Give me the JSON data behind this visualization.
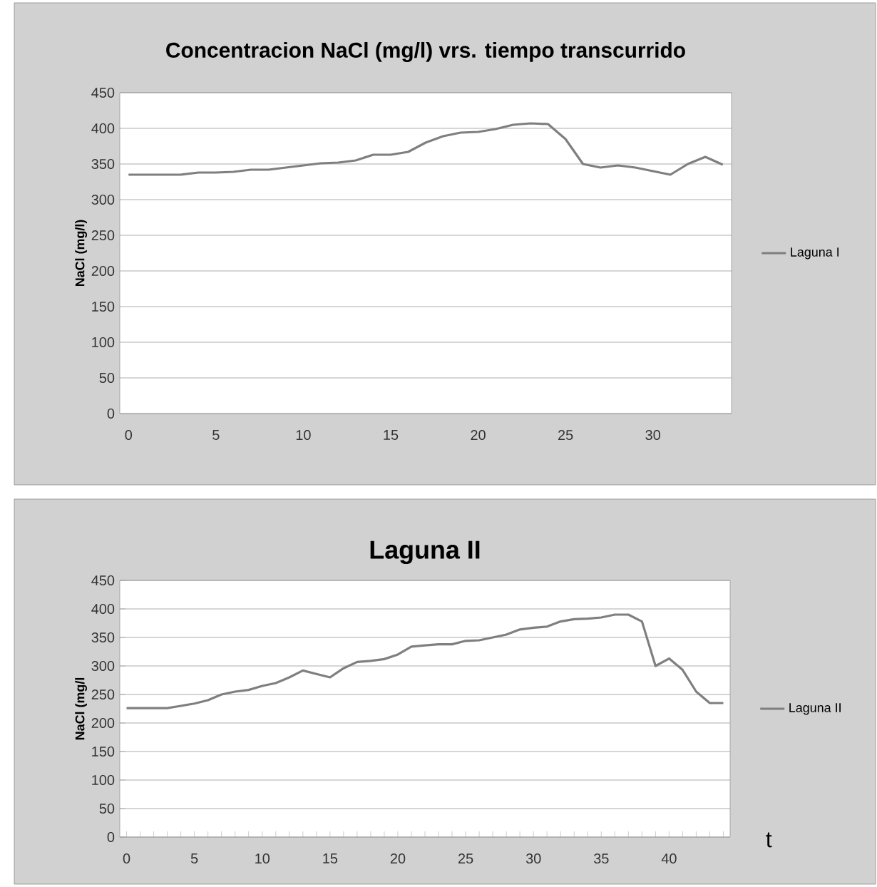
{
  "chart_data": [
    {
      "type": "line",
      "title": "Concentracion  NaCl (mg/l) vrs. tiempo transcurrido",
      "ylabel": "NaCl (mg/l)",
      "x": [
        0,
        1,
        2,
        3,
        4,
        5,
        6,
        7,
        8,
        9,
        10,
        11,
        12,
        13,
        14,
        15,
        16,
        17,
        18,
        19,
        20,
        21,
        22,
        23,
        24,
        25,
        26,
        27,
        28,
        29,
        30,
        31,
        32,
        33,
        34
      ],
      "series": [
        {
          "name": "Laguna I",
          "color": "#7f7f7f",
          "values": [
            335,
            335,
            335,
            335,
            338,
            338,
            339,
            342,
            342,
            345,
            348,
            351,
            352,
            355,
            363,
            363,
            367,
            380,
            389,
            394,
            395,
            399,
            405,
            407,
            406,
            385,
            350,
            345,
            348,
            345,
            340,
            335,
            350,
            360,
            349
          ]
        }
      ],
      "xlim": [
        -0.5,
        34.5
      ],
      "xticks": [
        0,
        5,
        10,
        15,
        20,
        25,
        30
      ],
      "ylim": [
        0,
        450
      ],
      "yticks": [
        0,
        50,
        100,
        150,
        200,
        250,
        300,
        350,
        400,
        450
      ],
      "grid": "y",
      "legend": "right",
      "marker": "none"
    },
    {
      "type": "line",
      "title": "Laguna II",
      "ylabel": "NaCl (mg/l",
      "xlabel": "t",
      "x": [
        0,
        1,
        2,
        3,
        4,
        5,
        6,
        7,
        8,
        9,
        10,
        11,
        12,
        13,
        14,
        15,
        16,
        17,
        18,
        19,
        20,
        21,
        22,
        23,
        24,
        25,
        26,
        27,
        28,
        29,
        30,
        31,
        32,
        33,
        34,
        35,
        36,
        37,
        38,
        39,
        40,
        41,
        42,
        43,
        44
      ],
      "series": [
        {
          "name": "Laguna II",
          "color": "#7f7f7f",
          "values": [
            226,
            226,
            226,
            226,
            230,
            234,
            240,
            250,
            255,
            258,
            265,
            270,
            280,
            292,
            286,
            280,
            296,
            307,
            309,
            312,
            320,
            334,
            336,
            338,
            338,
            344,
            345,
            350,
            355,
            364,
            367,
            369,
            378,
            382,
            383,
            385,
            390,
            390,
            378,
            300,
            313,
            293,
            255,
            235,
            235
          ]
        }
      ],
      "xlim": [
        -0.5,
        44.5
      ],
      "xticks": [
        0,
        {
          "value": 1,
          "label": null
        },
        {
          "value": 2,
          "label": null
        },
        {
          "value": 3,
          "label": null
        },
        {
          "value": 4,
          "label": null
        },
        5,
        {
          "value": 6,
          "label": null
        },
        {
          "value": 7,
          "label": null
        },
        {
          "value": 8,
          "label": null
        },
        {
          "value": 9,
          "label": null
        },
        10,
        {
          "value": 11,
          "label": null
        },
        {
          "value": 12,
          "label": null
        },
        {
          "value": 13,
          "label": null
        },
        {
          "value": 14,
          "label": null
        },
        15,
        {
          "value": 16,
          "label": null
        },
        {
          "value": 17,
          "label": null
        },
        {
          "value": 18,
          "label": null
        },
        {
          "value": 19,
          "label": null
        },
        20,
        {
          "value": 21,
          "label": null
        },
        {
          "value": 22,
          "label": null
        },
        {
          "value": 23,
          "label": null
        },
        {
          "value": 24,
          "label": null
        },
        25,
        {
          "value": 26,
          "label": null
        },
        {
          "value": 27,
          "label": null
        },
        {
          "value": 28,
          "label": null
        },
        {
          "value": 29,
          "label": null
        },
        30,
        {
          "value": 31,
          "label": null
        },
        {
          "value": 32,
          "label": null
        },
        {
          "value": 33,
          "label": null
        },
        {
          "value": 34,
          "label": null
        },
        35,
        {
          "value": 36,
          "label": null
        },
        {
          "value": 37,
          "label": null
        },
        {
          "value": 38,
          "label": null
        },
        {
          "value": 39,
          "label": null
        },
        40,
        {
          "value": 41,
          "label": null
        },
        {
          "value": 42,
          "label": null
        },
        {
          "value": 43,
          "label": null
        },
        {
          "value": 44,
          "label": null
        }
      ],
      "ylim": [
        0,
        450
      ],
      "yticks": [
        0,
        50,
        100,
        150,
        200,
        250,
        300,
        350,
        400,
        450
      ],
      "grid": "y",
      "legend": "right",
      "marker": "none"
    }
  ]
}
